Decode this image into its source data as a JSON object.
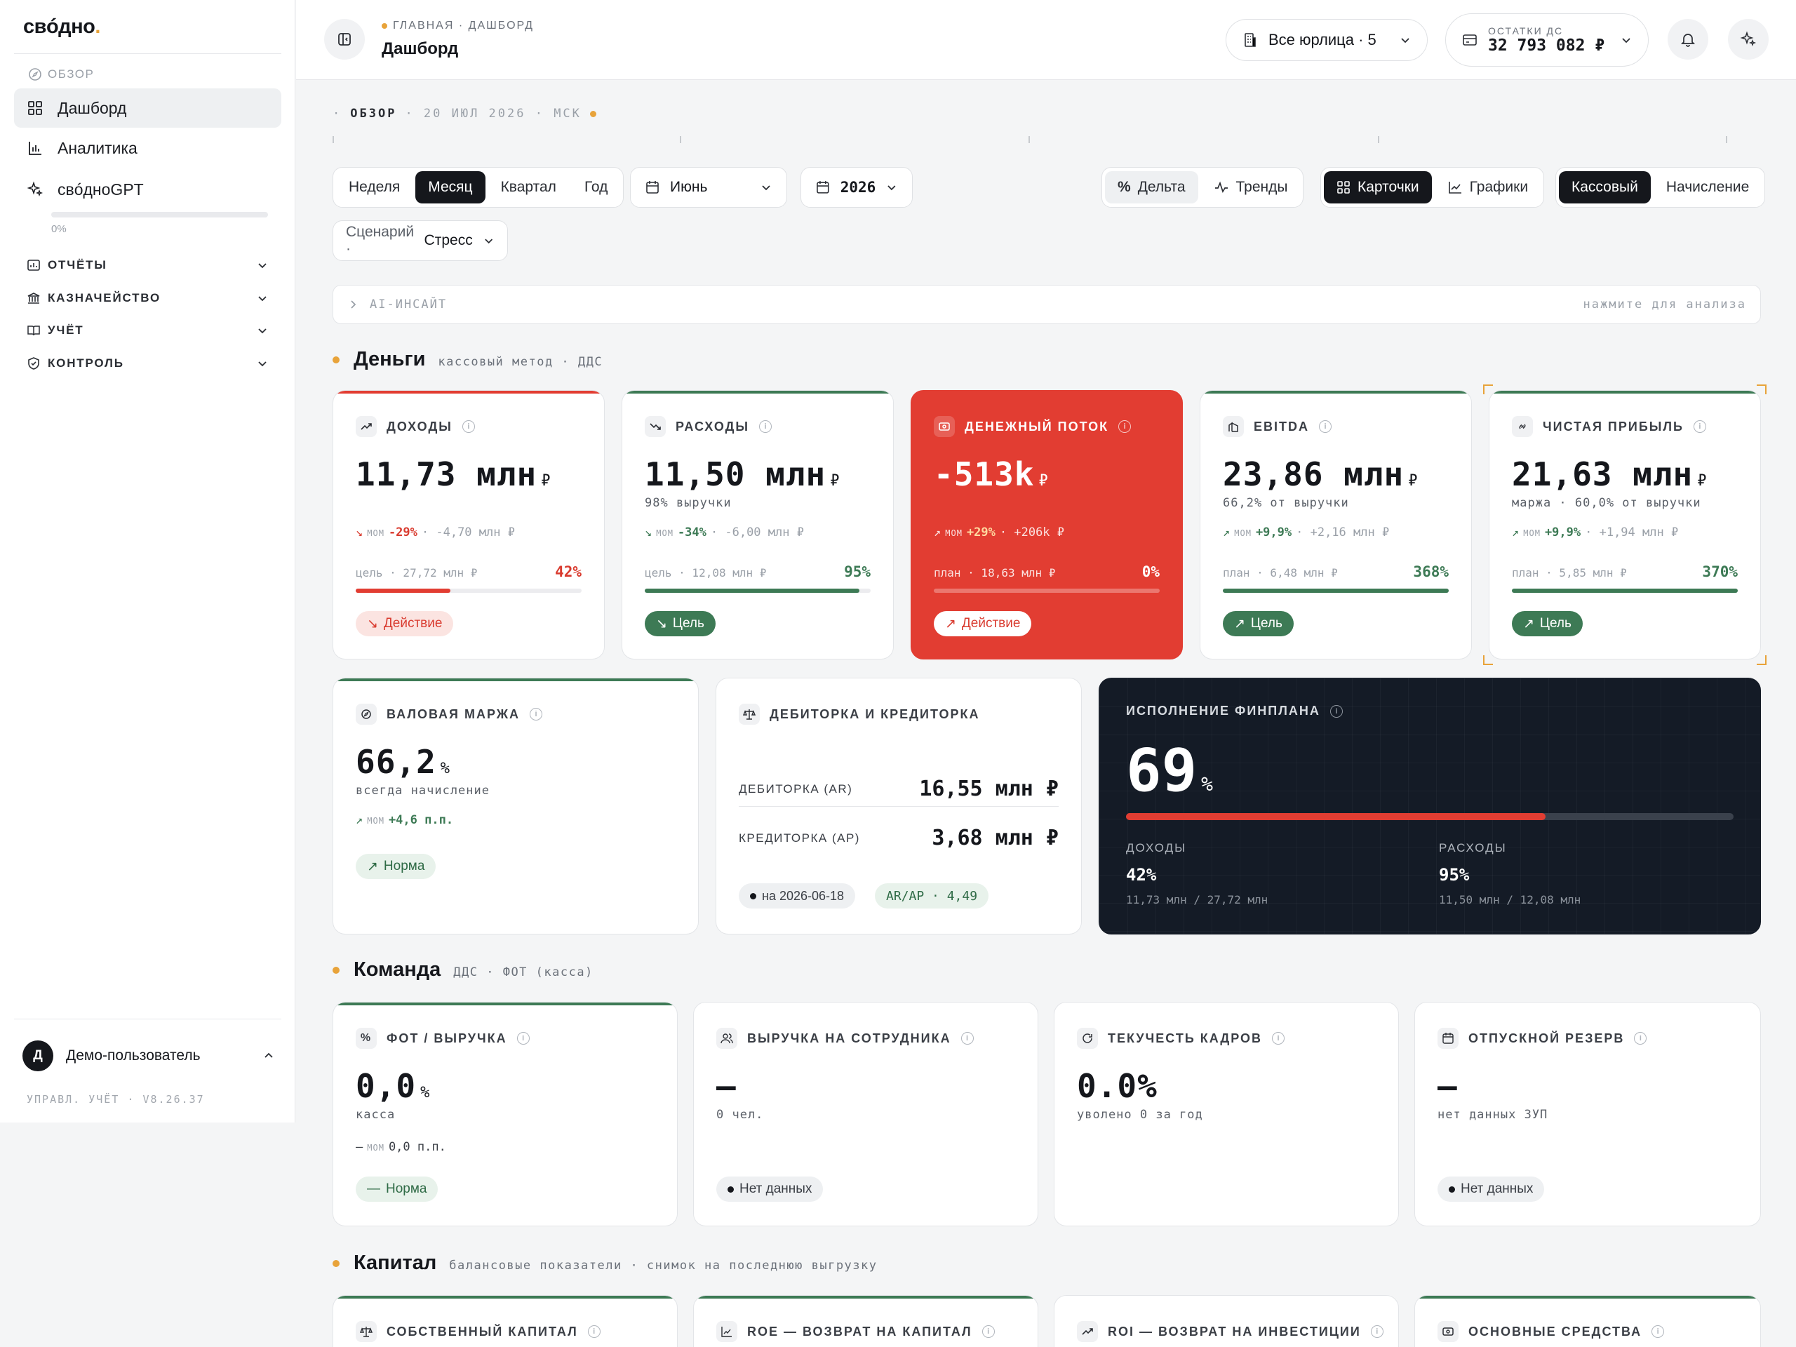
{
  "sidebar": {
    "logo": "свóдно",
    "logo_dot": ".",
    "section_label": "ОБЗОР",
    "items": [
      {
        "label": "Дашборд"
      },
      {
        "label": "Аналитика"
      },
      {
        "label": "свóдноGPT"
      }
    ],
    "progress_label": "0%",
    "progress_value": 0,
    "groups": [
      {
        "label": "ОТЧЁТЫ"
      },
      {
        "label": "КАЗНАЧЕЙСТВО"
      },
      {
        "label": "УЧЁТ"
      },
      {
        "label": "КОНТРОЛЬ"
      }
    ],
    "user_initial": "Д",
    "user_name": "Демо-пользователь",
    "version": "УПРАВЛ. УЧЁТ · V8.26.37"
  },
  "header": {
    "breadcrumb": "ГЛАВНАЯ · ДАШБОРД",
    "title": "Дашборд",
    "entity_select": "Все юрлица · 5",
    "balance_label": "ОСТАТКИ ДС",
    "balance_value": "32 793 082 ₽"
  },
  "toolbar": {
    "overview_label": "ОБЗОР",
    "overview_date": "· 20 ИЮЛ 2026 · МСК",
    "periods": [
      "Неделя",
      "Месяц",
      "Квартал",
      "Год"
    ],
    "month_select": "Июнь",
    "year_select": "2026",
    "view_modes": [
      "Дельта",
      "Тренды"
    ],
    "display_modes": [
      "Карточки",
      "Графики"
    ],
    "methods": [
      "Кассовый",
      "Начисление"
    ],
    "scenario_label": "Сценарий ·",
    "scenario_value": "Стресс"
  },
  "insight": {
    "label": "AI-ИНСАЙТ",
    "hint": "нажмите для анализа"
  },
  "money": {
    "title": "Деньги",
    "subtitle": "кассовый метод · ДДС",
    "cards": [
      {
        "label": "ДОХОДЫ",
        "value": "11,73 млн",
        "unit": "₽",
        "sub": "",
        "mom_tag": "MOM",
        "mom_pct": "-29%",
        "mom_abs": "· -4,70 млн ₽",
        "goal": "цель · 27,72 млн ₽",
        "goal_pct": "42%",
        "progress": 0.42,
        "badge": "Действие"
      },
      {
        "label": "РАСХОДЫ",
        "value": "11,50 млн",
        "unit": "₽",
        "sub": "98% выручки",
        "mom_tag": "MOM",
        "mom_pct": "-34%",
        "mom_abs": "· -6,00 млн ₽",
        "goal": "цель · 12,08 млн ₽",
        "goal_pct": "95%",
        "progress": 0.95,
        "badge": "Цель"
      },
      {
        "label": "ДЕНЕЖНЫЙ ПОТОК",
        "value": "-513k",
        "unit": "₽",
        "sub": "",
        "mom_tag": "MOM",
        "mom_pct": "+29%",
        "mom_abs": "· +206k ₽",
        "goal": "план · 18,63 млн ₽",
        "goal_pct": "0%",
        "progress": 0,
        "badge": "Действие"
      },
      {
        "label": "EBITDA",
        "value": "23,86 млн",
        "unit": "₽",
        "sub": "66,2% от выручки",
        "mom_tag": "MOM",
        "mom_pct": "+9,9%",
        "mom_abs": "· +2,16 млн ₽",
        "goal": "план · 6,48 млн ₽",
        "goal_pct": "368%",
        "progress": 1,
        "badge": "Цель"
      },
      {
        "label": "ЧИСТАЯ ПРИБЫЛЬ",
        "value": "21,63 млн",
        "unit": "₽",
        "sub": "маржа · 60,0% от выручки",
        "mom_tag": "MOM",
        "mom_pct": "+9,9%",
        "mom_abs": "· +1,94 млн ₽",
        "goal": "план · 5,85 млн ₽",
        "goal_pct": "370%",
        "progress": 1,
        "badge": "Цель"
      }
    ],
    "margin": {
      "label": "ВАЛОВАЯ МАРЖА",
      "value": "66,2",
      "unit": "%",
      "sub": "всегда начисление",
      "mom_tag": "MOM",
      "mom_pct": "+4,6 п.п.",
      "badge": "Норма"
    },
    "arap": {
      "label": "ДЕБИТОРКА И КРЕДИТОРКА",
      "ar_label": "ДЕБИТОРКА (AR)",
      "ar_value": "16,55 млн ₽",
      "ap_label": "КРЕДИТОРКА (AP)",
      "ap_value": "3,68 млн ₽",
      "date_badge": "на 2026-06-18",
      "ratio_badge": "AR/AP · 4,49"
    },
    "plan": {
      "label": "ИСПОЛНЕНИЕ ФИНПЛАНА",
      "value": "69",
      "unit": "%",
      "progress": 0.69,
      "income_label": "ДОХОДЫ",
      "income_pct": "42%",
      "income_detail": "11,73 млн / 27,72 млн",
      "expense_label": "РАСХОДЫ",
      "expense_pct": "95%",
      "expense_detail": "11,50 млн / 12,08 млн"
    }
  },
  "team": {
    "title": "Команда",
    "subtitle": "ДДС · ФОТ (касса)",
    "cards": [
      {
        "label": "ФОТ / ВЫРУЧКА",
        "value": "0,0",
        "unit": "%",
        "sub": "касса",
        "mom_tag": "MOM",
        "mom_pct": "0,0 п.п.",
        "badge": "Норма"
      },
      {
        "label": "ВЫРУЧКА НА СОТРУДНИКА",
        "value": "—",
        "unit": "",
        "sub": "0 чел.",
        "badge": "Нет данных"
      },
      {
        "label": "ТЕКУЧЕСТЬ КАДРОВ",
        "value": "0.0%",
        "unit": "",
        "sub": "уволено 0 за год",
        "badge": ""
      },
      {
        "label": "ОТПУСКНОЙ РЕЗЕРВ",
        "value": "—",
        "unit": "",
        "sub": "нет данных ЗУП",
        "badge": "Нет данных"
      }
    ]
  },
  "capital": {
    "title": "Капитал",
    "subtitle": "балансовые показатели · снимок на последнюю выгрузку",
    "cards": [
      {
        "label": "СОБСТВЕННЫЙ КАПИТАЛ"
      },
      {
        "label": "ROE — ВОЗВРАТ НА КАПИТАЛ"
      },
      {
        "label": "ROI — ВОЗВРАТ НА ИНВЕСТИЦИИ"
      },
      {
        "label": "ОСНОВНЫЕ СРЕДСТВА"
      }
    ]
  },
  "colors": {
    "accent": "#e8a33a",
    "negative": "#d93b2f",
    "positive": "#3d7a55",
    "dark": "#141b26"
  }
}
